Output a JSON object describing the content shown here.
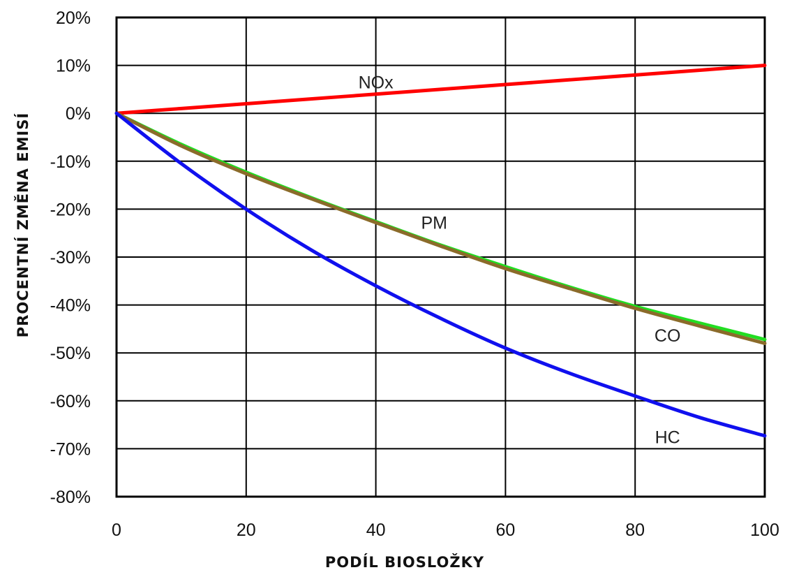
{
  "chart_data": {
    "type": "line",
    "xlabel": "PODÍL BIOSLOŽKY",
    "ylabel": "PROCENTNÍ ZMĚNA EMISÍ",
    "xlim": [
      0,
      100
    ],
    "ylim": [
      -80,
      20
    ],
    "x_ticks": [
      0,
      20,
      40,
      60,
      80,
      100
    ],
    "x_tick_labels": [
      "0",
      "20",
      "40",
      "60",
      "80",
      "100"
    ],
    "y_ticks": [
      20,
      10,
      0,
      -10,
      -20,
      -30,
      -40,
      -50,
      -60,
      -70,
      -80
    ],
    "y_tick_labels": [
      "20%",
      "10%",
      "0%",
      "-10%",
      "-20%",
      "-30%",
      "-40%",
      "-50%",
      "-60%",
      "-70%",
      "-80%"
    ],
    "grid": true,
    "x": [
      0,
      10,
      20,
      30,
      40,
      50,
      60,
      70,
      80,
      90,
      100
    ],
    "series": [
      {
        "name": "NOx",
        "color": "#ff0000",
        "values": [
          0,
          1,
          2,
          3,
          4,
          5,
          6,
          7,
          8,
          9,
          10
        ],
        "label_at": [
          40,
          6.5
        ]
      },
      {
        "name": "PM",
        "color": "#22dd22",
        "values": [
          0,
          -6.5,
          -12.3,
          -17.6,
          -22.6,
          -27.5,
          -32,
          -36.3,
          -40.3,
          -43.8,
          -47.2
        ],
        "label_at": [
          49,
          -22.8
        ]
      },
      {
        "name": "CO",
        "color": "#8b6b2a",
        "values": [
          0,
          -6.8,
          -12.6,
          -17.8,
          -22.8,
          -27.7,
          -32.4,
          -36.6,
          -40.7,
          -44.4,
          -48
        ],
        "label_at": [
          85,
          -46.3
        ]
      },
      {
        "name": "HC",
        "color": "#1010ee",
        "values": [
          0,
          -10.5,
          -20,
          -28.5,
          -36,
          -42.8,
          -49,
          -54.3,
          -59,
          -63.5,
          -67.3
        ],
        "label_at": [
          85,
          -67.5
        ]
      }
    ]
  }
}
